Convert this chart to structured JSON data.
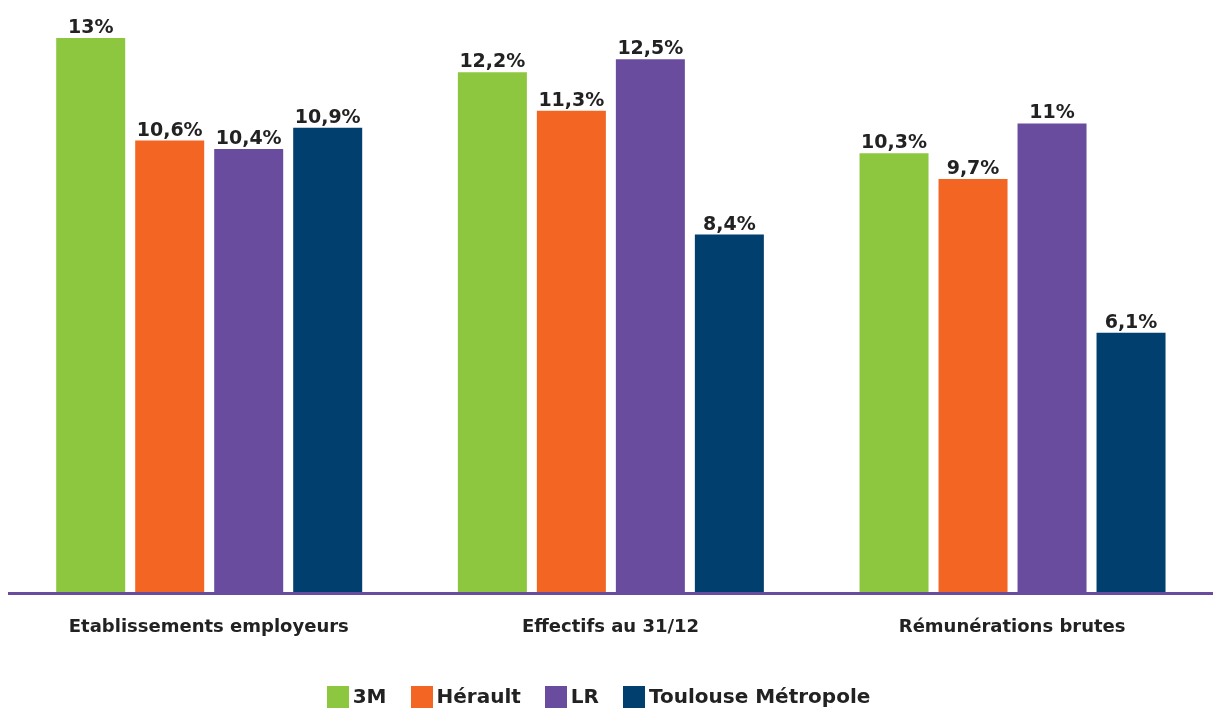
{
  "chart_data": {
    "type": "bar",
    "categories": [
      "Etablissements employeurs",
      "Effectifs au 31/12",
      "Rémunérations brutes"
    ],
    "series": [
      {
        "name": "3M",
        "color": "#8dc63f",
        "values": [
          13,
          12.2,
          10.3
        ],
        "value_labels": [
          "13%",
          "12,2%",
          "10,3%"
        ]
      },
      {
        "name": "Hérault",
        "color": "#f26522",
        "values": [
          10.6,
          11.3,
          9.7
        ],
        "value_labels": [
          "10,6%",
          "11,3%",
          "9,7%"
        ]
      },
      {
        "name": "LR",
        "color": "#6a4c9f",
        "values": [
          10.4,
          12.5,
          11
        ],
        "value_labels": [
          "10,4%",
          "12,5%",
          "11%"
        ]
      },
      {
        "name": "Toulouse Métropole",
        "color": "#003f6e",
        "values": [
          10.9,
          8.4,
          6.1
        ],
        "value_labels": [
          "10,9%",
          "8,4%",
          "6,1%"
        ]
      }
    ],
    "legend": "bottom",
    "grid": false
  }
}
